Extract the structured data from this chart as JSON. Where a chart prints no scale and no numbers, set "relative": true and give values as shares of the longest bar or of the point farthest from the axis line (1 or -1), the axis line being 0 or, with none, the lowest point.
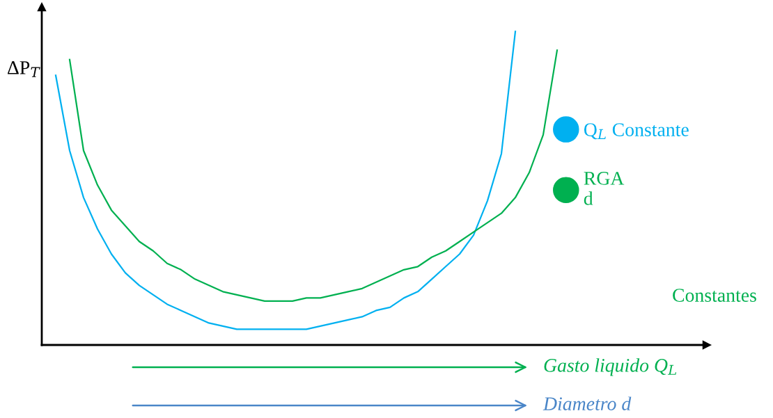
{
  "chart_data": {
    "type": "line",
    "relative": true,
    "ylabel": "ΔP$_{T}$",
    "categories": [
      null,
      null,
      null,
      null,
      null,
      null,
      null,
      null,
      null,
      null,
      null,
      null,
      null,
      null,
      null,
      null,
      null,
      null,
      null,
      null,
      null,
      null,
      null,
      null,
      null,
      null,
      null,
      null,
      null,
      null,
      null,
      null,
      null,
      null,
      null,
      null,
      null,
      null,
      null,
      null,
      null,
      null,
      null,
      null,
      null,
      null,
      null,
      null
    ],
    "series": [
      {
        "name": "Q$_{L}$ Constante",
        "color": "#00b0f0",
        "values": [
          null,
          0.86,
          0.62,
          0.47,
          0.37,
          0.29,
          0.23,
          0.19,
          0.16,
          0.13,
          0.11,
          0.09,
          0.07,
          0.06,
          0.05,
          0.05,
          0.05,
          0.05,
          0.05,
          0.05,
          0.06,
          0.07,
          0.08,
          0.09,
          0.11,
          0.12,
          0.15,
          0.17,
          0.21,
          0.25,
          0.29,
          0.35,
          0.46,
          0.61,
          1,
          null,
          null,
          null,
          null,
          null,
          null,
          null,
          null,
          null,
          null,
          null,
          null,
          null
        ]
      },
      {
        "name": "RGA\nd",
        "color": "#00b050",
        "values": [
          null,
          null,
          0.91,
          0.62,
          0.51,
          0.43,
          0.38,
          0.33,
          0.3,
          0.26,
          0.24,
          0.21,
          0.19,
          0.17,
          0.16,
          0.15,
          0.14,
          0.14,
          0.14,
          0.15,
          0.15,
          0.16,
          0.17,
          0.18,
          0.2,
          0.22,
          0.24,
          0.25,
          0.28,
          0.3,
          0.33,
          0.36,
          0.39,
          0.42,
          0.47,
          0.55,
          0.67,
          0.94,
          null,
          null,
          null,
          null,
          null,
          null,
          null,
          null,
          null,
          null
        ]
      }
    ],
    "legend": "right",
    "marker": "none",
    "line_style": "solid",
    "annotations": [
      "Constantes",
      "Gasto liquido Q$_{L}$",
      "Diametro d"
    ]
  }
}
